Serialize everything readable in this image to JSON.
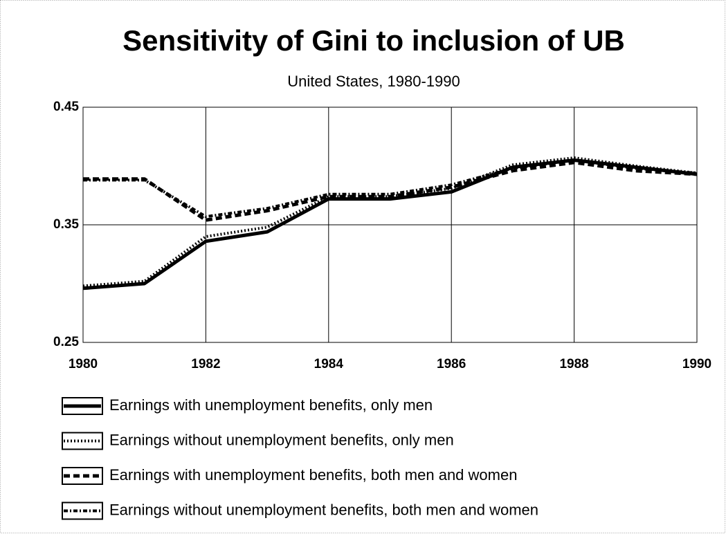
{
  "chart_data": {
    "type": "line",
    "title": "Sensitivity of Gini to inclusion of UB",
    "subtitle": "United States, 1980-1990",
    "x": [
      1980,
      1981,
      1982,
      1983,
      1984,
      1985,
      1986,
      1987,
      1988,
      1989,
      1990
    ],
    "xlim": [
      1980,
      1990
    ],
    "xticks": [
      1980,
      1982,
      1984,
      1986,
      1988,
      1990
    ],
    "ylim": [
      0.25,
      0.45
    ],
    "yticks": [
      0.25,
      0.35,
      0.45
    ],
    "grid": true,
    "series": [
      {
        "name": "Earnings with unemployment benefits, only men",
        "color": "#000000",
        "style": "solid",
        "values": [
          0.296,
          0.3,
          0.336,
          0.344,
          0.372,
          0.372,
          0.378,
          0.399,
          0.405,
          0.399,
          0.393
        ]
      },
      {
        "name": "Earnings without unemployment benefits, only men",
        "color": "#000000",
        "style": "dotted",
        "values": [
          0.298,
          0.302,
          0.34,
          0.348,
          0.374,
          0.374,
          0.381,
          0.401,
          0.407,
          0.4,
          0.394
        ]
      },
      {
        "name": "Earnings with unemployment benefits, both men and women",
        "color": "#000000",
        "style": "dashed",
        "values": [
          0.389,
          0.389,
          0.354,
          0.362,
          0.374,
          0.374,
          0.382,
          0.396,
          0.403,
          0.396,
          0.393
        ]
      },
      {
        "name": "Earnings without unemployment benefits, both men and women",
        "color": "#000000",
        "style": "dash-dot",
        "values": [
          0.388,
          0.388,
          0.357,
          0.364,
          0.376,
          0.376,
          0.384,
          0.398,
          0.405,
          0.398,
          0.394
        ]
      }
    ]
  }
}
